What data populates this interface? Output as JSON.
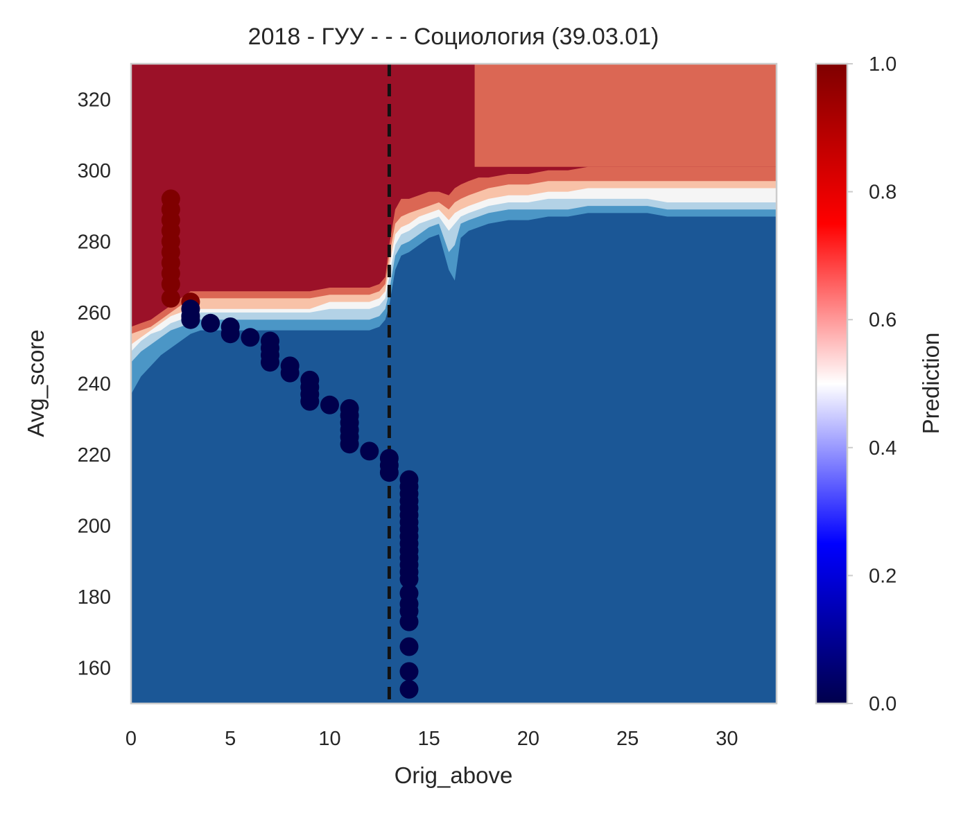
{
  "chart_data": {
    "type": "scatter",
    "title": "2018 - ГУУ - - - Социология (39.03.01)",
    "xlabel": "Orig_above",
    "ylabel": "Avg_score",
    "xlim": [
      0,
      32.5
    ],
    "ylim": [
      150,
      330
    ],
    "xticks": [
      "0",
      "5",
      "10",
      "15",
      "20",
      "25",
      "30"
    ],
    "yticks": [
      "160",
      "180",
      "200",
      "220",
      "240",
      "260",
      "280",
      "300",
      "320"
    ],
    "threshold_x": 13,
    "colorbar": {
      "label": "Prediction",
      "range": [
        0,
        1
      ],
      "ticks": [
        "0.0",
        "0.2",
        "0.4",
        "0.6",
        "0.8",
        "1.0"
      ],
      "colormap": "seismic"
    },
    "contour_colors": {
      "high": "#9b1128",
      "upper_mid": "#db6754",
      "mid_high": "#f8c2a8",
      "neutral": "#f5f5f5",
      "mid_low": "#b3d2e6",
      "lower_mid": "#4b96c6",
      "low": "#1b5796"
    },
    "boundaries": {
      "x": [
        0,
        0.5,
        1,
        1.5,
        2,
        2.5,
        3,
        3.5,
        4,
        5,
        6,
        7,
        8,
        9,
        10,
        11,
        12,
        12.5,
        12.8,
        13,
        13.3,
        13.6,
        14,
        14.5,
        15,
        15.5,
        16,
        16.3,
        16.6,
        17,
        17.5,
        18,
        19,
        20,
        21,
        22,
        23,
        24,
        25,
        26,
        27,
        28,
        29,
        30,
        31,
        32.5
      ],
      "b_low": [
        237,
        242,
        245,
        248,
        250,
        252,
        254,
        255,
        255,
        255,
        255,
        255,
        255,
        255,
        255,
        255,
        255,
        256,
        258,
        262,
        272,
        276,
        277,
        279,
        281,
        282,
        272,
        269,
        281,
        283,
        284,
        285,
        286,
        286,
        287,
        287,
        288,
        288,
        288,
        288,
        287,
        287,
        287,
        287,
        287,
        287
      ],
      "b_lm": [
        246,
        249,
        251,
        253,
        255,
        256,
        257,
        258,
        258,
        258,
        258,
        258,
        258,
        258,
        258,
        258,
        258,
        259,
        261,
        266,
        276,
        279,
        280,
        282,
        284,
        285,
        277,
        279,
        285,
        286,
        287,
        288,
        289,
        289,
        289,
        289,
        290,
        290,
        290,
        290,
        289,
        289,
        289,
        289,
        289,
        289
      ],
      "b_ml": [
        249,
        252,
        254,
        255,
        257,
        258,
        259,
        260,
        260,
        260,
        260,
        260,
        260,
        260,
        261,
        261,
        261,
        262,
        264,
        270,
        279,
        282,
        283,
        285,
        286,
        287,
        283,
        285,
        287,
        288,
        289,
        290,
        291,
        291,
        292,
        292,
        292,
        292,
        292,
        292,
        291,
        291,
        291,
        291,
        291,
        291
      ],
      "b_n": [
        251,
        253,
        255,
        257,
        259,
        260,
        261,
        261,
        261,
        261,
        261,
        261,
        261,
        261,
        263,
        263,
        263,
        264,
        266,
        273,
        282,
        284,
        285,
        287,
        288,
        289,
        286,
        288,
        289,
        290,
        291,
        292,
        293,
        293,
        294,
        294,
        295,
        295,
        295,
        295,
        295,
        295,
        295,
        295,
        295,
        295
      ],
      "b_mh": [
        254,
        255,
        256,
        258,
        260,
        262,
        264,
        264,
        264,
        264,
        264,
        264,
        264,
        264,
        265,
        265,
        265,
        266,
        268,
        276,
        285,
        287,
        288,
        289,
        290,
        291,
        289,
        291,
        292,
        293,
        294,
        295,
        296,
        296,
        297,
        297,
        297,
        297,
        297,
        297,
        297,
        297,
        297,
        297,
        297,
        297
      ],
      "b_um": [
        256,
        257,
        258,
        260,
        262,
        264,
        266,
        266,
        266,
        266,
        266,
        266,
        266,
        266,
        267,
        267,
        267,
        268,
        270,
        279,
        289,
        292,
        292,
        293,
        294,
        294,
        293,
        295,
        296,
        297,
        298,
        298,
        299,
        299,
        300,
        300,
        301,
        301,
        301,
        301,
        301,
        301,
        301,
        301,
        301,
        301
      ],
      "b_h": [
        257,
        258,
        259,
        261,
        263,
        265,
        268,
        268,
        268,
        268,
        268,
        268,
        268,
        268,
        269,
        269,
        269,
        270,
        273,
        283,
        293,
        296,
        297,
        298,
        299,
        299,
        298,
        303,
        305,
        305,
        330,
        330,
        330,
        330,
        330,
        330,
        330,
        330,
        330,
        330,
        330,
        330,
        330,
        330,
        330,
        330
      ]
    },
    "series": [
      {
        "class": 1,
        "color": "#7f0000",
        "points": [
          [
            2,
            292
          ],
          [
            2,
            289
          ],
          [
            2,
            286
          ],
          [
            2,
            283
          ],
          [
            2,
            280
          ],
          [
            2,
            277
          ],
          [
            2,
            274
          ],
          [
            2,
            271
          ],
          [
            2,
            268
          ],
          [
            2,
            264
          ],
          [
            3,
            263
          ]
        ]
      },
      {
        "class": 0,
        "color": "#00004c",
        "points": [
          [
            3,
            261
          ],
          [
            3,
            259
          ],
          [
            3,
            258
          ],
          [
            4,
            257
          ],
          [
            5,
            256
          ],
          [
            5,
            254
          ],
          [
            6,
            253
          ],
          [
            7,
            252
          ],
          [
            7,
            250
          ],
          [
            7,
            248
          ],
          [
            7,
            246
          ],
          [
            8,
            245
          ],
          [
            8,
            243
          ],
          [
            9,
            241
          ],
          [
            9,
            239
          ],
          [
            9,
            237
          ],
          [
            9,
            235
          ],
          [
            10,
            234
          ],
          [
            11,
            233
          ],
          [
            11,
            231
          ],
          [
            11,
            229
          ],
          [
            11,
            227
          ],
          [
            11,
            225
          ],
          [
            11,
            223
          ],
          [
            12,
            221
          ],
          [
            13,
            219
          ],
          [
            13,
            217
          ],
          [
            13,
            215
          ],
          [
            14,
            213
          ],
          [
            14,
            211
          ],
          [
            14,
            209
          ],
          [
            14,
            207
          ],
          [
            14,
            205
          ],
          [
            14,
            203
          ],
          [
            14,
            201
          ],
          [
            14,
            199
          ],
          [
            14,
            197
          ],
          [
            14,
            195
          ],
          [
            14,
            193
          ],
          [
            14,
            191
          ],
          [
            14,
            189
          ],
          [
            14,
            187
          ],
          [
            14,
            185
          ],
          [
            14,
            181
          ],
          [
            14,
            178
          ],
          [
            14,
            176
          ],
          [
            14,
            173
          ],
          [
            14,
            166
          ],
          [
            14,
            159
          ],
          [
            14,
            154
          ]
        ]
      }
    ]
  }
}
